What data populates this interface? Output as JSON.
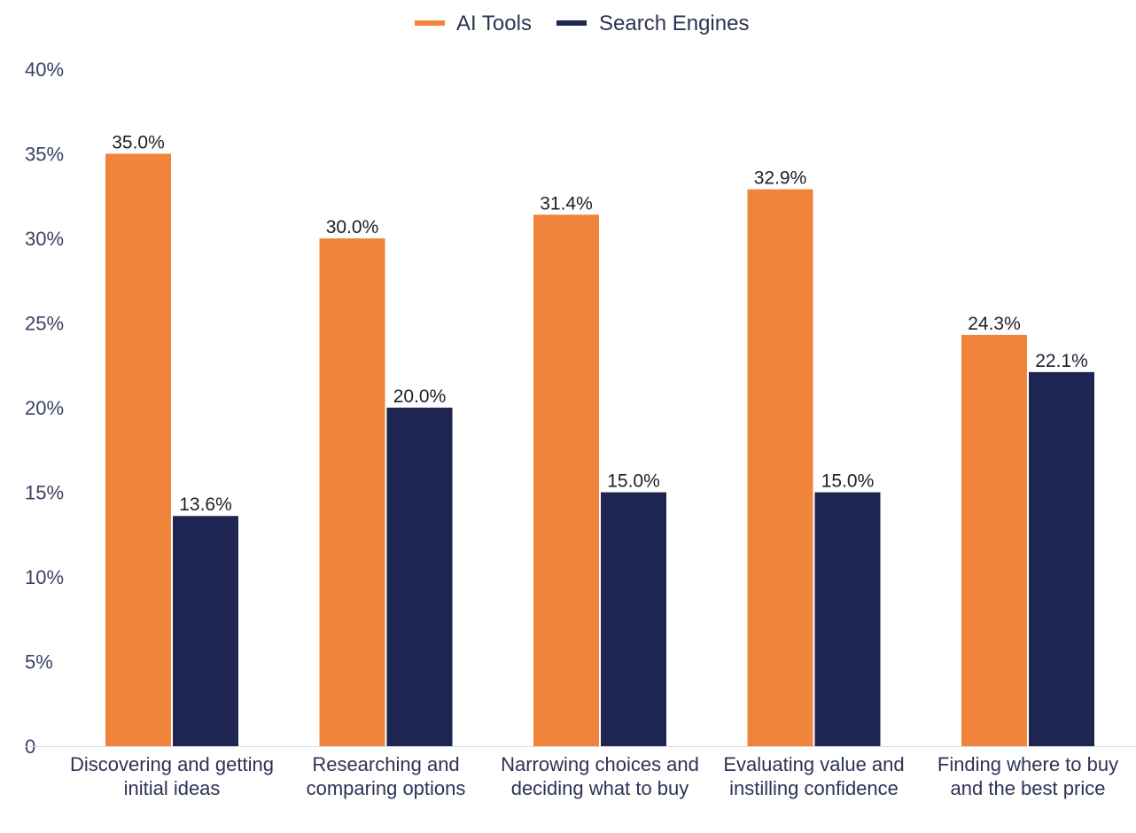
{
  "chart_data": {
    "type": "bar",
    "title": "",
    "xlabel": "",
    "ylabel": "",
    "ylim": [
      0,
      40
    ],
    "y_ticks": [
      {
        "value": 0,
        "label": "0"
      },
      {
        "value": 5,
        "label": "5%"
      },
      {
        "value": 10,
        "label": "10%"
      },
      {
        "value": 15,
        "label": "15%"
      },
      {
        "value": 20,
        "label": "20%"
      },
      {
        "value": 25,
        "label": "25%"
      },
      {
        "value": 30,
        "label": "30%"
      },
      {
        "value": 35,
        "label": "35%"
      },
      {
        "value": 40,
        "label": "40%"
      }
    ],
    "grid": false,
    "legend_position": "top-center",
    "categories": [
      [
        "Discovering and getting",
        "initial ideas"
      ],
      [
        "Researching and",
        "comparing options"
      ],
      [
        "Narrowing choices and",
        "deciding what to buy"
      ],
      [
        "Evaluating value and",
        "instilling confidence"
      ],
      [
        "Finding where to buy",
        "and the best price"
      ]
    ],
    "series": [
      {
        "name": "AI Tools",
        "color": "#ef843a",
        "values": [
          35.0,
          30.0,
          31.4,
          32.9,
          24.3
        ],
        "labels": [
          "35.0%",
          "30.0%",
          "31.4%",
          "32.9%",
          "24.3%"
        ]
      },
      {
        "name": "Search Engines",
        "color": "#1e2550",
        "values": [
          13.6,
          20.0,
          15.0,
          15.0,
          22.1
        ],
        "labels": [
          "13.6%",
          "20.0%",
          "15.0%",
          "15.0%",
          "22.1%"
        ]
      }
    ]
  }
}
